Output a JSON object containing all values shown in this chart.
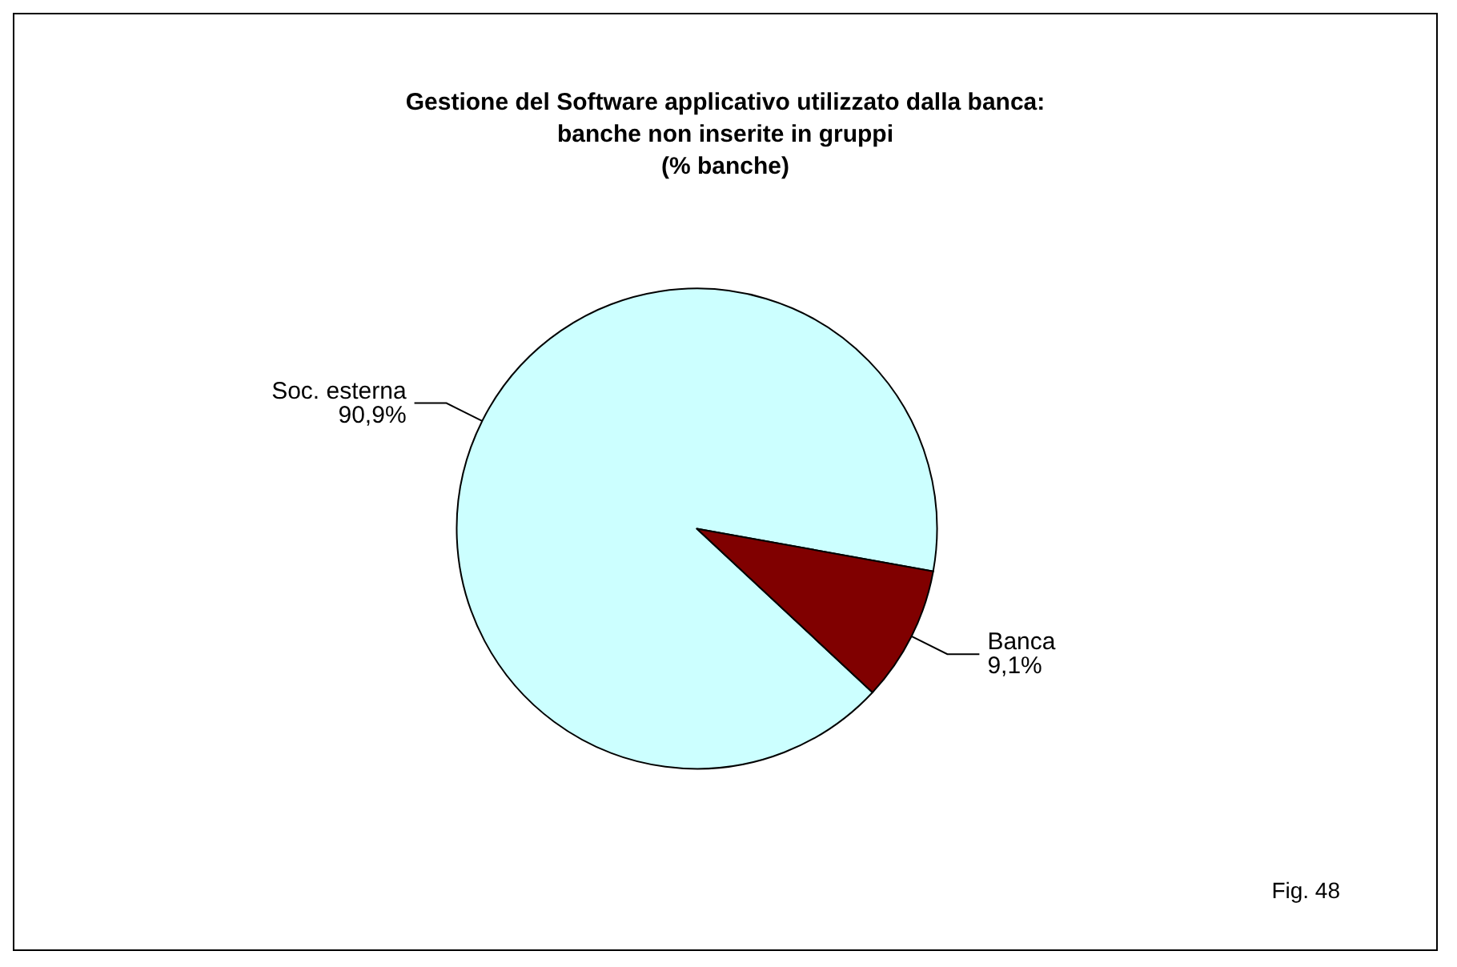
{
  "chart_data": {
    "type": "pie",
    "title": "Gestione del Software applicativo utilizzato dalla banca:\nbanche non inserite in gruppi\n(% banche)",
    "categories": [
      "Soc. esterna",
      "Banca"
    ],
    "values": [
      90.9,
      9.1
    ],
    "value_labels": [
      "90,9%",
      "9,1%"
    ],
    "colors": [
      "#ccffff",
      "#800000"
    ],
    "annotations": [
      "Fig. 48"
    ],
    "legend": false
  }
}
